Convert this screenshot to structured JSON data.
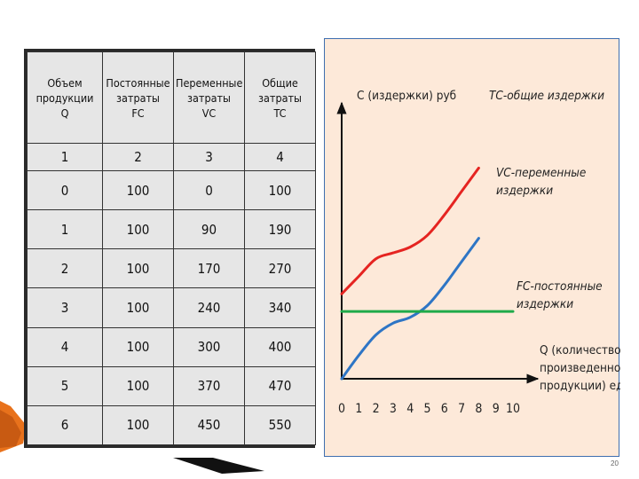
{
  "table": {
    "headers": [
      [
        "Объем",
        "продукции",
        "Q"
      ],
      [
        "Постоянные",
        "затраты",
        "FC"
      ],
      [
        "Переменные",
        "затраты",
        "VC"
      ],
      [
        "Общие",
        "затраты",
        "TC"
      ]
    ],
    "column_numbers": [
      "1",
      "2",
      "3",
      "4"
    ],
    "rows": [
      [
        "0",
        "100",
        "0",
        "100"
      ],
      [
        "1",
        "100",
        "90",
        "190"
      ],
      [
        "2",
        "100",
        "170",
        "270"
      ],
      [
        "3",
        "100",
        "240",
        "340"
      ],
      [
        "4",
        "100",
        "300",
        "400"
      ],
      [
        "5",
        "100",
        "370",
        "470"
      ],
      [
        "6",
        "100",
        "450",
        "550"
      ]
    ]
  },
  "chart_data": {
    "type": "line",
    "ylabel": "С (издержки) руб",
    "xlabel": "Q (количество произведенной продукции) ед.",
    "xlabel_lines": [
      "Q (количество",
      "произведенной",
      "продукции) ед."
    ],
    "x_ticks": [
      "0",
      "1",
      "2",
      "3",
      "4",
      "5",
      "6",
      "7",
      "8",
      "9",
      "10"
    ],
    "xlim": [
      0,
      10
    ],
    "grid": false,
    "series": [
      {
        "name": "TC-общие издержки",
        "label_lines": [
          "TC-общие издержки"
        ],
        "color": "#e52421",
        "x": [
          0,
          1,
          2,
          3,
          4,
          5,
          6,
          7,
          8
        ],
        "y": [
          145,
          175,
          205,
          215,
          225,
          245,
          280,
          320,
          360
        ]
      },
      {
        "name": "VC-переменные издержки",
        "label_lines": [
          "VC-переменные",
          "издержки"
        ],
        "color": "#2e75c5",
        "x": [
          0,
          1,
          2,
          3,
          4,
          5,
          6,
          7,
          8
        ],
        "y": [
          0,
          40,
          75,
          95,
          105,
          125,
          160,
          200,
          240
        ]
      },
      {
        "name": "FC-постоянные издержки",
        "label_lines": [
          "FC-постоянные",
          "издержки"
        ],
        "color": "#1faa4a",
        "x": [
          0,
          10
        ],
        "y": [
          115,
          115
        ]
      }
    ]
  },
  "page_number": "20"
}
